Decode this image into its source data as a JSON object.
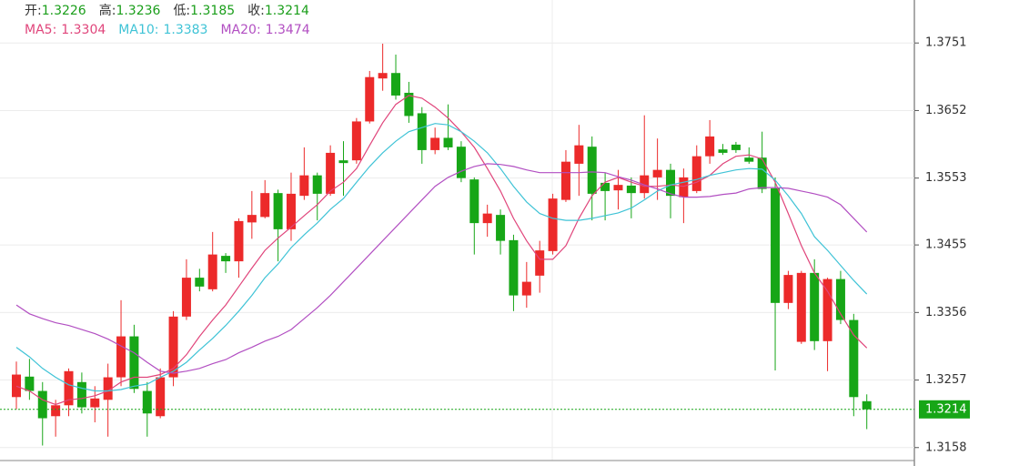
{
  "chart_data": {
    "type": "candlestick",
    "ohlc_summary": [
      {
        "label": "开:",
        "value": 1.3226
      },
      {
        "label": "高:",
        "value": 1.3236
      },
      {
        "label": "低:",
        "value": 1.3185
      },
      {
        "label": "收:",
        "value": 1.3214
      }
    ],
    "summary_color": "#1a9e1a",
    "up_color": "#ec2a2a",
    "down_color": "#17a617",
    "ohlc": {
      "open": [
        1.3232,
        1.3262,
        1.3241,
        1.3204,
        1.322,
        1.3254,
        1.3217,
        1.3228,
        1.3261,
        1.3321,
        1.3241,
        1.3204,
        1.3261,
        1.335,
        1.3407,
        1.339,
        1.3439,
        1.3431,
        1.3488,
        1.3496,
        1.3531,
        1.3478,
        1.3527,
        1.3557,
        1.353,
        1.3579,
        1.3579,
        1.3636,
        1.3699,
        1.3707,
        1.3678,
        1.3648,
        1.3594,
        1.3612,
        1.3599,
        1.3551,
        1.3487,
        1.3499,
        1.3462,
        1.3381,
        1.341,
        1.3446,
        1.3521,
        1.3574,
        1.3599,
        1.3546,
        1.3535,
        1.3542,
        1.3531,
        1.3554,
        1.3565,
        1.3525,
        1.3534,
        1.3585,
        1.3595,
        1.3602,
        1.3583,
        1.3583,
        1.3538,
        1.337,
        1.3313,
        1.3414,
        1.3314,
        1.3405,
        1.3345,
        1.3226
      ],
      "high": [
        1.3284,
        1.3288,
        1.3254,
        1.3228,
        1.3274,
        1.3268,
        1.3248,
        1.3281,
        1.3374,
        1.3338,
        1.3254,
        1.3274,
        1.3358,
        1.3434,
        1.342,
        1.3474,
        1.3443,
        1.3494,
        1.3534,
        1.355,
        1.3536,
        1.3561,
        1.3598,
        1.3561,
        1.3601,
        1.3607,
        1.3641,
        1.371,
        1.375,
        1.3734,
        1.3694,
        1.3657,
        1.3627,
        1.3661,
        1.3607,
        1.3554,
        1.3514,
        1.3507,
        1.347,
        1.343,
        1.3461,
        1.353,
        1.3594,
        1.3631,
        1.3614,
        1.3561,
        1.3565,
        1.3554,
        1.3645,
        1.3611,
        1.3574,
        1.3567,
        1.3601,
        1.3638,
        1.3603,
        1.3606,
        1.3598,
        1.3621,
        1.3554,
        1.3417,
        1.3417,
        1.3434,
        1.3407,
        1.3417,
        1.3354,
        1.3236
      ],
      "low": [
        1.3214,
        1.3228,
        1.3161,
        1.3174,
        1.3204,
        1.3208,
        1.3195,
        1.3174,
        1.3248,
        1.3238,
        1.3174,
        1.3201,
        1.3248,
        1.3345,
        1.3387,
        1.3387,
        1.3414,
        1.3407,
        1.3464,
        1.3494,
        1.3431,
        1.3461,
        1.3521,
        1.3491,
        1.3527,
        1.3527,
        1.3574,
        1.3633,
        1.3681,
        1.3668,
        1.3634,
        1.3574,
        1.3588,
        1.3594,
        1.3547,
        1.3441,
        1.3467,
        1.3441,
        1.3358,
        1.3363,
        1.3385,
        1.3441,
        1.3518,
        1.3527,
        1.3491,
        1.3491,
        1.3507,
        1.3494,
        1.3523,
        1.3521,
        1.3494,
        1.3487,
        1.3531,
        1.3574,
        1.3587,
        1.359,
        1.3574,
        1.3531,
        1.3271,
        1.3361,
        1.331,
        1.3301,
        1.327,
        1.3339,
        1.3204,
        1.3185
      ],
      "close": [
        1.3265,
        1.3241,
        1.3201,
        1.322,
        1.327,
        1.3217,
        1.323,
        1.3261,
        1.3321,
        1.3244,
        1.3208,
        1.3261,
        1.335,
        1.3407,
        1.3394,
        1.3441,
        1.3431,
        1.349,
        1.3499,
        1.3531,
        1.3478,
        1.353,
        1.3557,
        1.353,
        1.359,
        1.3575,
        1.3636,
        1.3701,
        1.3707,
        1.3674,
        1.3644,
        1.3594,
        1.3612,
        1.3598,
        1.3553,
        1.3487,
        1.3501,
        1.3461,
        1.3381,
        1.3401,
        1.3447,
        1.3523,
        1.3577,
        1.3601,
        1.353,
        1.3534,
        1.3543,
        1.3531,
        1.3557,
        1.3565,
        1.3527,
        1.3554,
        1.3585,
        1.3614,
        1.359,
        1.3594,
        1.3577,
        1.3537,
        1.337,
        1.3411,
        1.3414,
        1.3314,
        1.3405,
        1.3345,
        1.3232,
        1.3214
      ]
    },
    "series": [
      {
        "name": "MA5:",
        "current": 1.3304,
        "color": "#e0457b",
        "values": [
          1.3248,
          1.3241,
          1.3228,
          1.3221,
          1.3228,
          1.323,
          1.3234,
          1.3241,
          1.3254,
          1.3261,
          1.3261,
          1.3265,
          1.3274,
          1.3294,
          1.3321,
          1.3345,
          1.3367,
          1.3394,
          1.3421,
          1.3447,
          1.3465,
          1.3481,
          1.3498,
          1.3514,
          1.3534,
          1.3547,
          1.3567,
          1.3601,
          1.3634,
          1.3661,
          1.3674,
          1.367,
          1.3657,
          1.3641,
          1.3621,
          1.3598,
          1.3567,
          1.3534,
          1.3494,
          1.3461,
          1.3434,
          1.3434,
          1.3454,
          1.3494,
          1.3527,
          1.3547,
          1.3554,
          1.3547,
          1.3541,
          1.3541,
          1.3543,
          1.3541,
          1.3547,
          1.3557,
          1.3574,
          1.3585,
          1.3587,
          1.3581,
          1.3547,
          1.3501,
          1.3454,
          1.3414,
          1.3387,
          1.3354,
          1.3323,
          1.3304
        ]
      },
      {
        "name": "MA10:",
        "current": 1.3383,
        "color": "#3fc3d6",
        "values": [
          1.3305,
          1.3291,
          1.3274,
          1.3261,
          1.325,
          1.3245,
          1.3241,
          1.3241,
          1.3243,
          1.3248,
          1.3251,
          1.3261,
          1.327,
          1.3283,
          1.3301,
          1.3318,
          1.3337,
          1.3358,
          1.3381,
          1.3407,
          1.3427,
          1.3451,
          1.347,
          1.3487,
          1.3507,
          1.3523,
          1.3547,
          1.357,
          1.359,
          1.3607,
          1.3621,
          1.3627,
          1.3633,
          1.3631,
          1.3621,
          1.3607,
          1.359,
          1.3567,
          1.3541,
          1.3518,
          1.3501,
          1.3494,
          1.3491,
          1.3491,
          1.3494,
          1.3498,
          1.3502,
          1.3509,
          1.3521,
          1.3534,
          1.3543,
          1.3547,
          1.3551,
          1.3557,
          1.3561,
          1.3565,
          1.3567,
          1.3566,
          1.355,
          1.3527,
          1.3501,
          1.3467,
          1.3447,
          1.3425,
          1.3403,
          1.3383
        ]
      },
      {
        "name": "MA20:",
        "current": 1.3474,
        "color": "#b24fc2",
        "values": [
          1.3367,
          1.3354,
          1.3347,
          1.3341,
          1.3337,
          1.3331,
          1.3325,
          1.3317,
          1.3307,
          1.3297,
          1.3283,
          1.327,
          1.3267,
          1.327,
          1.3274,
          1.3281,
          1.3287,
          1.3297,
          1.3305,
          1.3314,
          1.3321,
          1.3331,
          1.3347,
          1.3363,
          1.3381,
          1.3401,
          1.3421,
          1.3441,
          1.3461,
          1.3481,
          1.3501,
          1.3521,
          1.3541,
          1.3554,
          1.3563,
          1.357,
          1.3574,
          1.3573,
          1.357,
          1.3565,
          1.3561,
          1.3561,
          1.3561,
          1.3561,
          1.3562,
          1.3561,
          1.3555,
          1.355,
          1.3543,
          1.3537,
          1.353,
          1.3525,
          1.3525,
          1.3526,
          1.3529,
          1.3531,
          1.3537,
          1.3539,
          1.3539,
          1.3538,
          1.3534,
          1.353,
          1.3525,
          1.3514,
          1.3494,
          1.3474
        ]
      }
    ],
    "last_price": 1.3214,
    "last_price_color": "#17a617",
    "ylim": [
      1.3131,
      1.3814
    ],
    "yticks": [
      1.3158,
      1.3257,
      1.3356,
      1.3455,
      1.3553,
      1.3652,
      1.3751
    ],
    "grid": true
  }
}
